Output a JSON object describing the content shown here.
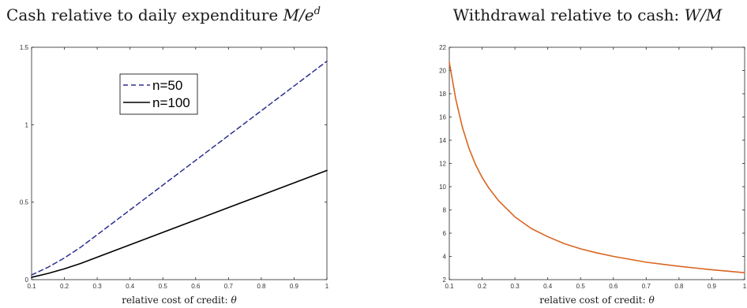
{
  "chart_data": [
    {
      "type": "line",
      "title_prefix": "Cash relative to daily expenditure ",
      "title_math": "M/e",
      "title_math_sup": "d",
      "xlabel_prefix": "relative cost of credit: ",
      "xlabel_math": "θ",
      "ylabel": "",
      "xlim": [
        0.1,
        1
      ],
      "ylim": [
        0,
        1.5
      ],
      "xticks": [
        0.1,
        0.2,
        0.3,
        0.4,
        0.5,
        0.6,
        0.7,
        0.8,
        0.9,
        1
      ],
      "xtick_labels": [
        "0.1",
        "0.2",
        "0.3",
        "0.4",
        "0.5",
        "0.6",
        "0.7",
        "0.8",
        "0.9",
        "1"
      ],
      "yticks": [
        0,
        0.5,
        1,
        1.5
      ],
      "ytick_labels": [
        "0",
        "0.5",
        "1",
        "1.5"
      ],
      "grid": false,
      "legend_position": "upper-center",
      "x": [
        0.1,
        0.15,
        0.2,
        0.25,
        0.3,
        0.35,
        0.4,
        0.45,
        0.5,
        0.55,
        0.6,
        0.65,
        0.7,
        0.75,
        0.8,
        0.85,
        0.9,
        0.95,
        1.0
      ],
      "series": [
        {
          "name": "n=50",
          "style": "dashed",
          "color": "#2b2f8f",
          "values": [
            0.03,
            0.08,
            0.14,
            0.21,
            0.29,
            0.37,
            0.45,
            0.53,
            0.61,
            0.69,
            0.77,
            0.85,
            0.93,
            1.01,
            1.09,
            1.17,
            1.25,
            1.33,
            1.41
          ]
        },
        {
          "name": "n=100",
          "style": "solid",
          "color": "#000000",
          "values": [
            0.015,
            0.04,
            0.07,
            0.105,
            0.145,
            0.185,
            0.225,
            0.265,
            0.305,
            0.345,
            0.385,
            0.425,
            0.465,
            0.505,
            0.545,
            0.585,
            0.625,
            0.665,
            0.705
          ]
        }
      ]
    },
    {
      "type": "line",
      "title_prefix": "Withdrawal relative to cash: ",
      "title_math": "W/M",
      "title_math_sup": "",
      "xlabel_prefix": "relative cost of credit: ",
      "xlabel_math": "θ",
      "ylabel": "",
      "xlim": [
        0.1,
        1
      ],
      "ylim": [
        2,
        22
      ],
      "xticks": [
        0.1,
        0.2,
        0.3,
        0.4,
        0.5,
        0.6,
        0.7,
        0.8,
        0.9,
        1
      ],
      "xtick_labels": [
        "0.1",
        "0.2",
        "0.3",
        "0.4",
        "0.5",
        "0.6",
        "0.7",
        "0.8",
        "0.9",
        "1"
      ],
      "yticks": [
        2,
        4,
        6,
        8,
        10,
        12,
        14,
        16,
        18,
        20,
        22
      ],
      "ytick_labels": [
        "2",
        "4",
        "6",
        "8",
        "10",
        "12",
        "14",
        "16",
        "18",
        "20",
        "22"
      ],
      "grid": false,
      "x": [
        0.1,
        0.12,
        0.14,
        0.16,
        0.18,
        0.2,
        0.22,
        0.25,
        0.3,
        0.35,
        0.4,
        0.45,
        0.5,
        0.55,
        0.6,
        0.7,
        0.8,
        0.9,
        1.0
      ],
      "series": [
        {
          "name": "",
          "style": "solid",
          "color": "#d9651f",
          "values": [
            20.7,
            17.5,
            15.1,
            13.3,
            11.9,
            10.8,
            9.9,
            8.8,
            7.4,
            6.4,
            5.7,
            5.1,
            4.65,
            4.3,
            4.0,
            3.5,
            3.15,
            2.85,
            2.6
          ]
        }
      ]
    }
  ]
}
